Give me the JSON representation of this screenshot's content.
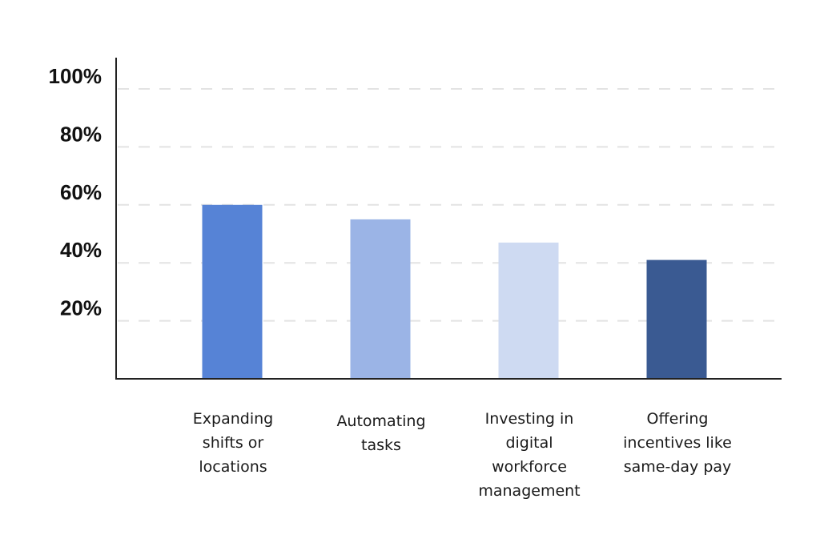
{
  "chart_data": {
    "type": "bar",
    "categories": [
      [
        "Expanding",
        "shifts or",
        "locations"
      ],
      [
        "Automating",
        "tasks"
      ],
      [
        "Investing in",
        "digital",
        "workforce",
        "management"
      ],
      [
        "Offering",
        "incentives like",
        "same-day pay"
      ]
    ],
    "values": [
      60,
      55,
      47,
      41
    ],
    "colors": [
      "#5683d6",
      "#9bb4e6",
      "#cedaf2",
      "#3a5a92"
    ],
    "yticks": [
      "20%",
      "40%",
      "60%",
      "80%",
      "100%"
    ],
    "ytick_values": [
      20,
      40,
      60,
      80,
      100
    ],
    "ylim": [
      0,
      100
    ],
    "grid": true,
    "title": "",
    "xlabel": "",
    "ylabel": ""
  }
}
